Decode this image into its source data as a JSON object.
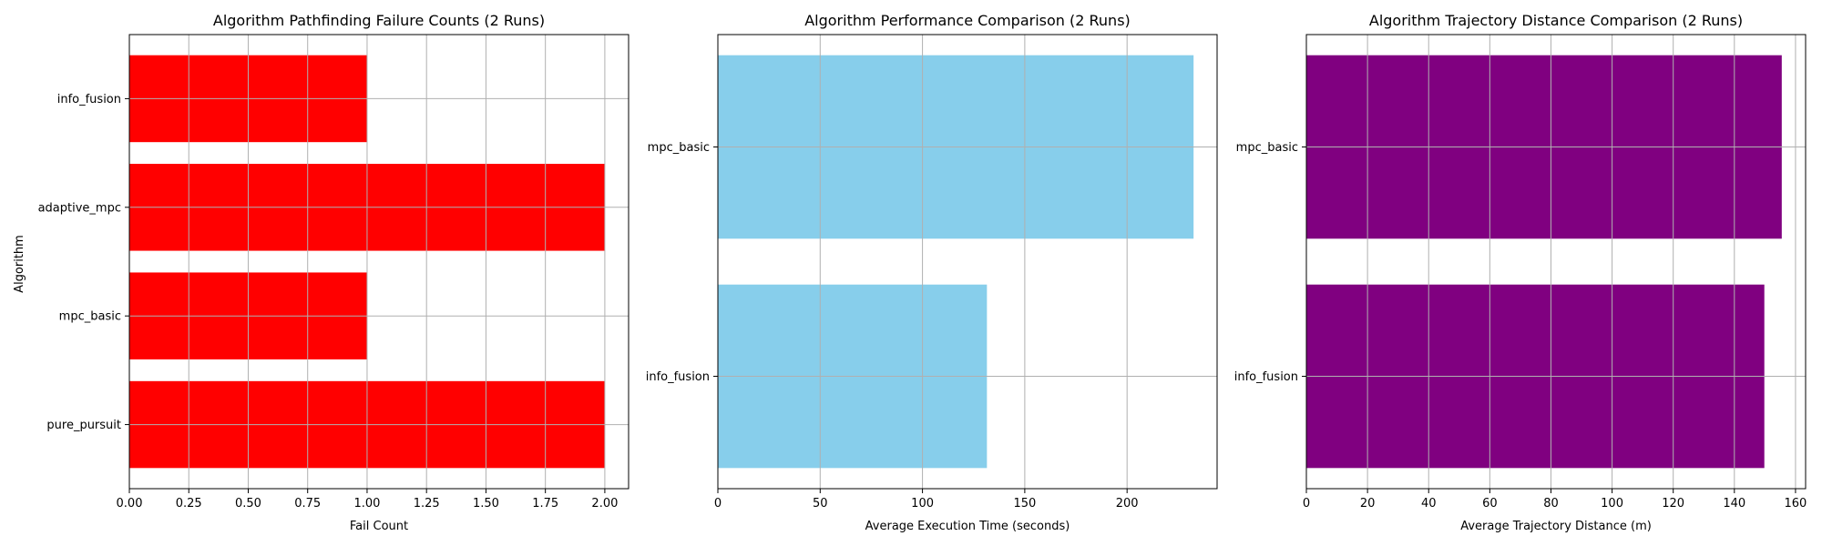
{
  "chart_data": [
    {
      "type": "bar",
      "orientation": "horizontal",
      "title": "Algorithm Pathfinding Failure Counts (2 Runs)",
      "xlabel": "Fail Count",
      "ylabel": "Algorithm",
      "categories": [
        "pure_pursuit",
        "mpc_basic",
        "adaptive_mpc",
        "info_fusion"
      ],
      "values": [
        2,
        1,
        2,
        1
      ],
      "xlim": [
        0,
        2.1
      ],
      "xticks": [
        "0.00",
        "0.25",
        "0.50",
        "0.75",
        "1.00",
        "1.25",
        "1.50",
        "1.75",
        "2.00"
      ],
      "color": "#ff0000",
      "grid": true
    },
    {
      "type": "bar",
      "orientation": "horizontal",
      "title": "Algorithm Performance Comparison (2 Runs)",
      "xlabel": "Average Execution Time (seconds)",
      "ylabel": "",
      "categories": [
        "info_fusion",
        "mpc_basic"
      ],
      "values": [
        131.5,
        232.5
      ],
      "xlim": [
        0,
        244
      ],
      "xticks": [
        "0",
        "50",
        "100",
        "150",
        "200"
      ],
      "color": "#87ceeb",
      "grid": true
    },
    {
      "type": "bar",
      "orientation": "horizontal",
      "title": "Algorithm Trajectory Distance Comparison (2 Runs)",
      "xlabel": "Average Trajectory Distance (m)",
      "ylabel": "",
      "categories": [
        "info_fusion",
        "mpc_basic"
      ],
      "values": [
        149.8,
        155.5
      ],
      "xlim": [
        0,
        163.3
      ],
      "xticks": [
        "0",
        "20",
        "40",
        "60",
        "80",
        "100",
        "120",
        "140",
        "160"
      ],
      "color": "#800080",
      "grid": true
    }
  ]
}
